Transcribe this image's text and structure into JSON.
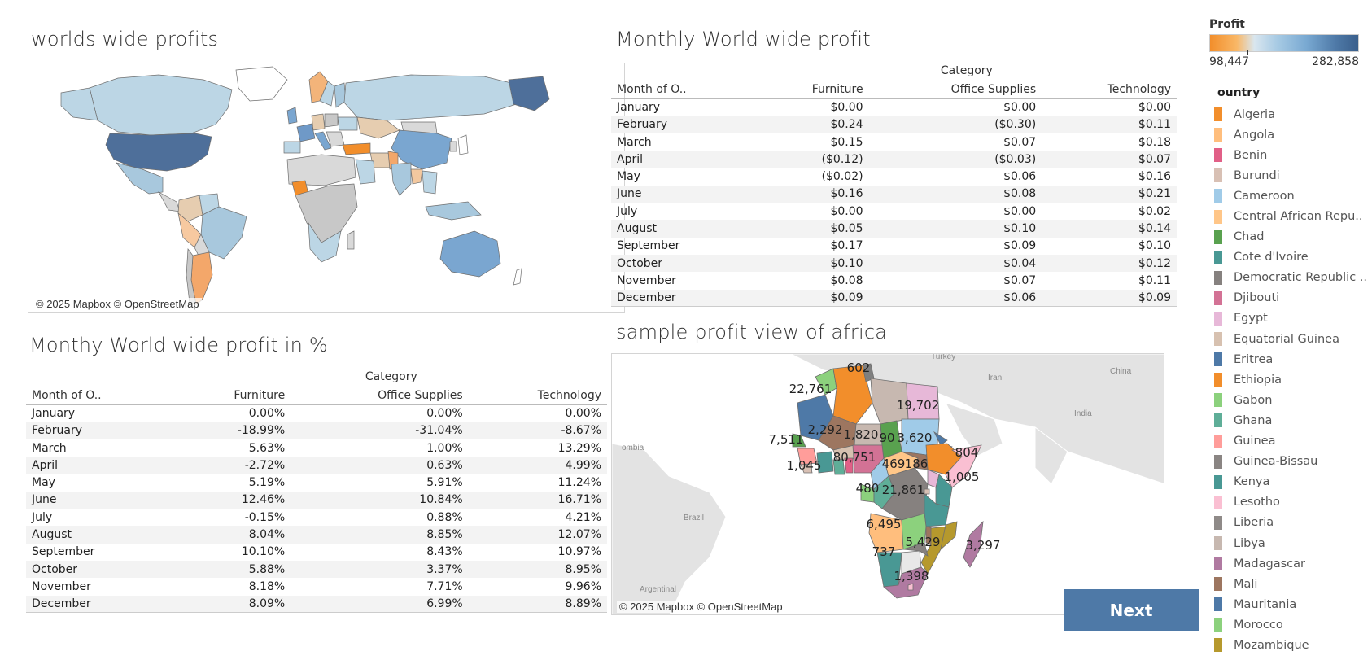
{
  "world_map": {
    "title": "worlds wide profits",
    "attribution": "© 2025 Mapbox © OpenStreetMap"
  },
  "monthly_profit": {
    "title": "Monthly World wide profit",
    "category_header": "Category",
    "columns": [
      "Month of O..",
      "Furniture",
      "Office Supplies",
      "Technology"
    ],
    "rows": [
      [
        "January",
        "$0.00",
        "$0.00",
        "$0.00"
      ],
      [
        "February",
        "$0.24",
        "($0.30)",
        "$0.11"
      ],
      [
        "March",
        "$0.15",
        "$0.07",
        "$0.18"
      ],
      [
        "April",
        "($0.12)",
        "($0.03)",
        "$0.07"
      ],
      [
        "May",
        "($0.02)",
        "$0.06",
        "$0.16"
      ],
      [
        "June",
        "$0.16",
        "$0.08",
        "$0.21"
      ],
      [
        "July",
        "$0.00",
        "$0.00",
        "$0.02"
      ],
      [
        "August",
        "$0.05",
        "$0.10",
        "$0.14"
      ],
      [
        "September",
        "$0.17",
        "$0.09",
        "$0.10"
      ],
      [
        "October",
        "$0.10",
        "$0.04",
        "$0.12"
      ],
      [
        "November",
        "$0.08",
        "$0.07",
        "$0.11"
      ],
      [
        "December",
        "$0.09",
        "$0.06",
        "$0.09"
      ]
    ]
  },
  "monthly_percent": {
    "title": "Monthy World wide profit in %",
    "category_header": "Category",
    "columns": [
      "Month of O..",
      "Furniture",
      "Office Supplies",
      "Technology"
    ],
    "rows": [
      [
        "January",
        "0.00%",
        "0.00%",
        "0.00%"
      ],
      [
        "February",
        "-18.99%",
        "-31.04%",
        "-8.67%"
      ],
      [
        "March",
        "5.63%",
        "1.00%",
        "13.29%"
      ],
      [
        "April",
        "-2.72%",
        "0.63%",
        "4.99%"
      ],
      [
        "May",
        "5.19%",
        "5.91%",
        "11.24%"
      ],
      [
        "June",
        "12.46%",
        "10.84%",
        "16.71%"
      ],
      [
        "July",
        "-0.15%",
        "0.88%",
        "4.21%"
      ],
      [
        "August",
        "8.04%",
        "8.85%",
        "12.07%"
      ],
      [
        "September",
        "10.10%",
        "8.43%",
        "10.97%"
      ],
      [
        "October",
        "5.88%",
        "3.37%",
        "8.95%"
      ],
      [
        "November",
        "8.18%",
        "7.71%",
        "9.96%"
      ],
      [
        "December",
        "8.09%",
        "6.99%",
        "8.89%"
      ]
    ]
  },
  "africa_map": {
    "title": "sample profit view of africa",
    "attribution": "© 2025 Mapbox © OpenStreetMap",
    "background_labels": [
      "Turkey",
      "Iran",
      "China",
      "India",
      "Brazil",
      "ombia",
      "Argentinal"
    ],
    "labels": [
      "602",
      "22,761",
      "19,702",
      "2,292",
      "1,820",
      "90",
      "3,620",
      "7,511",
      "80,751",
      "469",
      "186",
      "804",
      "1,045",
      "1,005",
      "480",
      "21,861",
      "6,495",
      "5,429",
      "3,297",
      "737",
      "1,398"
    ]
  },
  "profit_legend": {
    "title": "Profit",
    "min": "98,447",
    "max": "282,858"
  },
  "country_legend": {
    "title": "ountry",
    "items": [
      {
        "name": "Algeria",
        "color": "#f28e2b"
      },
      {
        "name": "Angola",
        "color": "#ffbe7d"
      },
      {
        "name": "Benin",
        "color": "#e15f87"
      },
      {
        "name": "Burundi",
        "color": "#d8c0b4"
      },
      {
        "name": "Cameroon",
        "color": "#a0cbe8"
      },
      {
        "name": "Central African Repu..",
        "color": "#ffc688"
      },
      {
        "name": "Chad",
        "color": "#59a14f"
      },
      {
        "name": "Cote d'Ivoire",
        "color": "#499894"
      },
      {
        "name": "Democratic Republic ..",
        "color": "#86817f"
      },
      {
        "name": "Djibouti",
        "color": "#d37295"
      },
      {
        "name": "Egypt",
        "color": "#e7b8d8"
      },
      {
        "name": "Equatorial Guinea",
        "color": "#d7c1b0"
      },
      {
        "name": "Eritrea",
        "color": "#4e79a7"
      },
      {
        "name": "Ethiopia",
        "color": "#f28e2b"
      },
      {
        "name": "Gabon",
        "color": "#8cd17d"
      },
      {
        "name": "Ghana",
        "color": "#5fae98"
      },
      {
        "name": "Guinea",
        "color": "#ff9d9a"
      },
      {
        "name": "Guinea-Bissau",
        "color": "#8a8583"
      },
      {
        "name": "Kenya",
        "color": "#499894"
      },
      {
        "name": "Lesotho",
        "color": "#fabfd2"
      },
      {
        "name": "Liberia",
        "color": "#8f8a88"
      },
      {
        "name": "Libya",
        "color": "#c7b8b0"
      },
      {
        "name": "Madagascar",
        "color": "#b07aa1"
      },
      {
        "name": "Mali",
        "color": "#9d7660"
      },
      {
        "name": "Mauritania",
        "color": "#4e79a7"
      },
      {
        "name": "Morocco",
        "color": "#8cd17d"
      },
      {
        "name": "Mozambique",
        "color": "#b6992d"
      }
    ]
  },
  "next_button": {
    "label": "Next"
  }
}
